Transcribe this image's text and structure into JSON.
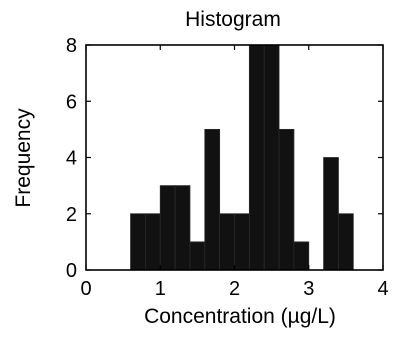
{
  "chart_data": {
    "type": "bar",
    "title": "Histogram",
    "xlabel": "Concentration (µg/L)",
    "ylabel": "Frequency",
    "xlim": [
      0,
      4
    ],
    "ylim": [
      0,
      8
    ],
    "x_ticks": [
      "0",
      "1",
      "2",
      "3",
      "4"
    ],
    "y_ticks": [
      "0",
      "2",
      "4",
      "6",
      "8"
    ],
    "bin_width": 0.2,
    "bins": [
      {
        "start": 0.6,
        "end": 0.8,
        "count": 2
      },
      {
        "start": 0.8,
        "end": 1.0,
        "count": 2
      },
      {
        "start": 1.0,
        "end": 1.2,
        "count": 3
      },
      {
        "start": 1.2,
        "end": 1.4,
        "count": 3
      },
      {
        "start": 1.4,
        "end": 1.6,
        "count": 1
      },
      {
        "start": 1.6,
        "end": 1.8,
        "count": 5
      },
      {
        "start": 1.8,
        "end": 2.0,
        "count": 2
      },
      {
        "start": 2.0,
        "end": 2.2,
        "count": 2
      },
      {
        "start": 2.2,
        "end": 2.4,
        "count": 8
      },
      {
        "start": 2.4,
        "end": 2.6,
        "count": 8
      },
      {
        "start": 2.6,
        "end": 2.8,
        "count": 5
      },
      {
        "start": 2.8,
        "end": 3.0,
        "count": 1
      },
      {
        "start": 3.0,
        "end": 3.2,
        "count": 0
      },
      {
        "start": 3.2,
        "end": 3.4,
        "count": 4
      },
      {
        "start": 3.4,
        "end": 3.6,
        "count": 2
      }
    ],
    "bar_color": "#111111",
    "bar_edge_color": "#2a2a2a",
    "grid": false,
    "legend": "none"
  }
}
